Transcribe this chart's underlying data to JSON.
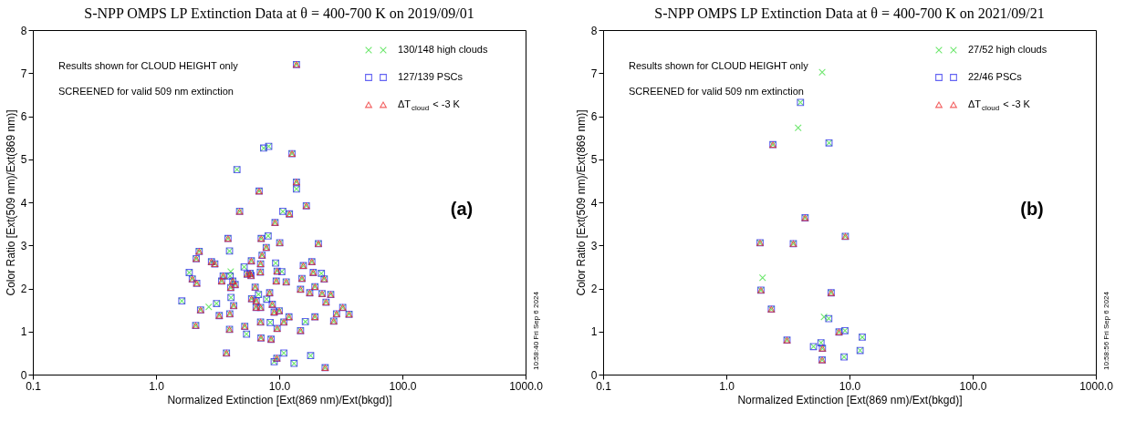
{
  "chart_data": [
    {
      "type": "scatter",
      "title": "S-NPP OMPS LP Extinction Data at θ = 400-700 K on 2019/09/01",
      "xlabel": "Normalized Extinction [Ext(869 nm)/Ext(bkgd)]",
      "ylabel": "Color Ratio [Ext(509 nm)/Ext(869 nm)]",
      "log": "x",
      "legend": "top right",
      "xlim": [
        0.1,
        1000
      ],
      "xticks": [
        {
          "value": 0.1,
          "label": "0.1"
        },
        {
          "value": 1,
          "label": "1.0"
        },
        {
          "value": 10,
          "label": "10.0"
        },
        {
          "value": 100,
          "label": "100.0"
        },
        {
          "value": 1000,
          "label": "1000.0"
        }
      ],
      "ylim": [
        0,
        8
      ],
      "yticks": [
        0,
        1,
        2,
        3,
        4,
        5,
        6,
        7,
        8
      ],
      "annotations": [
        "Results shown for CLOUD HEIGHT only",
        "SCREENED for valid 509 nm extinction",
        "(a)",
        "10:58:40 Fri Sep  6 2024"
      ],
      "series": [
        {
          "name": "130/148 high clouds",
          "color": "#33dd33",
          "marker": "cross",
          "x": [
            12.7,
            13.8,
            6.87,
            16.6,
            4.77,
            12.1,
            9.25,
            3.84,
            7.14,
            10.1,
            20.8,
            7.85,
            2.24,
            2.12,
            7.26,
            2.82,
            3.0,
            5.94,
            7.06,
            15.7,
            18.4,
            1.97,
            2.14,
            3.51,
            3.41,
            4.2,
            4.39,
            4.04,
            5.81,
            5.5,
            7.03,
            5.91,
            9.62,
            9.46,
            11.4,
            15.3,
            18.9,
            23.2,
            6.38,
            8.36,
            14.9,
            19.5,
            17.7,
            22.3,
            26.2,
            24.0,
            4.27,
            2.3,
            5.97,
            6.5,
            8.79,
            7.06,
            6.5,
            3.26,
            3.97,
            9.1,
            10.0,
            32.8,
            29.2,
            36.9,
            27.7,
            19.5,
            14.9,
            12.0,
            10.9,
            9.62,
            7.06,
            2.1,
            3.95,
            5.25,
            7.11,
            8.59,
            3.73,
            9.57,
            23.6,
            13.8,
            7.47,
            8.22,
            4.54,
            13.8,
            10.7,
            8.13,
            3.95,
            5.19,
            9.35,
            10.5,
            1.86,
            3.99,
            22.0,
            6.79,
            1.62,
            4.06,
            3.1,
            7.91,
            16.3,
            8.45,
            5.43,
            9.1,
            10.9,
            18.0,
            13.2,
            4.04,
            2.68
          ],
          "values": [
            5.13,
            4.47,
            4.26,
            3.92,
            3.79,
            3.73,
            3.53,
            3.16,
            3.16,
            3.06,
            3.04,
            2.95,
            2.86,
            2.69,
            2.77,
            2.62,
            2.57,
            2.64,
            2.57,
            2.53,
            2.62,
            2.22,
            2.12,
            2.29,
            2.17,
            2.17,
            2.09,
            2.02,
            2.35,
            2.33,
            2.38,
            2.3,
            2.4,
            2.17,
            2.15,
            2.23,
            2.37,
            2.22,
            2.03,
            1.9,
            1.98,
            2.04,
            1.9,
            1.88,
            1.86,
            1.68,
            1.6,
            1.5,
            1.76,
            1.71,
            1.63,
            1.56,
            1.56,
            1.37,
            1.41,
            1.45,
            1.48,
            1.56,
            1.41,
            1.4,
            1.24,
            1.34,
            1.02,
            1.34,
            1.22,
            1.07,
            1.22,
            1.14,
            1.05,
            1.12,
            0.85,
            0.82,
            0.5,
            0.38,
            0.16,
            7.2,
            5.26,
            5.3,
            4.76,
            4.31,
            3.79,
            3.22,
            2.87,
            2.5,
            2.59,
            2.39,
            2.37,
            2.29,
            2.35,
            1.86,
            1.71,
            1.79,
            1.65,
            1.75,
            1.23,
            1.21,
            0.94,
            0.3,
            0.5,
            0.44,
            0.26,
            2.39,
            1.57
          ]
        },
        {
          "name": "127/139 PSCs",
          "color": "#2222ee",
          "marker": "square",
          "x": [
            12.7,
            13.8,
            6.87,
            16.6,
            4.77,
            12.1,
            9.25,
            3.84,
            7.14,
            10.1,
            20.8,
            7.85,
            2.24,
            2.12,
            7.26,
            2.82,
            3.0,
            5.94,
            7.06,
            15.7,
            18.4,
            1.97,
            2.14,
            3.51,
            3.41,
            4.2,
            4.39,
            4.04,
            5.81,
            5.5,
            7.03,
            5.91,
            9.62,
            9.46,
            11.4,
            15.3,
            18.9,
            23.2,
            6.38,
            8.36,
            14.9,
            19.5,
            17.7,
            22.3,
            26.2,
            24.0,
            4.27,
            2.3,
            5.97,
            6.5,
            8.79,
            7.06,
            6.5,
            3.26,
            3.97,
            9.1,
            10.0,
            32.8,
            29.2,
            36.9,
            27.7,
            19.5,
            14.9,
            12.0,
            10.9,
            9.62,
            7.06,
            2.1,
            3.95,
            5.25,
            7.11,
            8.59,
            3.73,
            9.57,
            23.6,
            13.8,
            7.47,
            8.22,
            4.54,
            13.8,
            10.7,
            8.13,
            3.95,
            5.19,
            9.35,
            10.5,
            1.86,
            3.99,
            22.0,
            6.79,
            1.62,
            4.06,
            3.1,
            7.91,
            16.3,
            8.45,
            5.43,
            9.1,
            10.9,
            18.0,
            13.2
          ],
          "values": [
            5.13,
            4.47,
            4.26,
            3.92,
            3.79,
            3.73,
            3.53,
            3.16,
            3.16,
            3.06,
            3.04,
            2.95,
            2.86,
            2.69,
            2.77,
            2.62,
            2.57,
            2.64,
            2.57,
            2.53,
            2.62,
            2.22,
            2.12,
            2.29,
            2.17,
            2.17,
            2.09,
            2.02,
            2.35,
            2.33,
            2.38,
            2.3,
            2.4,
            2.17,
            2.15,
            2.23,
            2.37,
            2.22,
            2.03,
            1.9,
            1.98,
            2.04,
            1.9,
            1.88,
            1.86,
            1.68,
            1.6,
            1.5,
            1.76,
            1.71,
            1.63,
            1.56,
            1.56,
            1.37,
            1.41,
            1.45,
            1.48,
            1.56,
            1.41,
            1.4,
            1.24,
            1.34,
            1.02,
            1.34,
            1.22,
            1.07,
            1.22,
            1.14,
            1.05,
            1.12,
            0.85,
            0.82,
            0.5,
            0.38,
            0.16,
            7.2,
            5.26,
            5.3,
            4.76,
            4.31,
            3.79,
            3.22,
            2.87,
            2.5,
            2.59,
            2.39,
            2.37,
            2.29,
            2.35,
            1.86,
            1.71,
            1.79,
            1.65,
            1.75,
            1.23,
            1.21,
            0.94,
            0.3,
            0.5,
            0.44,
            0.26
          ]
        },
        {
          "name": "ΔT$_{cloud}$ < -3 K",
          "color": "#ee2020",
          "marker": "triangle",
          "x": [
            12.7,
            13.8,
            6.87,
            16.6,
            4.77,
            12.1,
            9.25,
            3.84,
            7.14,
            10.1,
            20.8,
            7.85,
            2.24,
            2.12,
            7.26,
            2.82,
            3.0,
            5.94,
            7.06,
            15.7,
            18.4,
            1.97,
            2.14,
            3.51,
            3.41,
            4.2,
            4.39,
            4.04,
            5.81,
            5.5,
            7.03,
            5.91,
            9.62,
            9.46,
            11.4,
            15.3,
            18.9,
            23.2,
            6.38,
            8.36,
            14.9,
            19.5,
            17.7,
            22.3,
            26.2,
            24.0,
            4.27,
            2.3,
            5.97,
            6.5,
            8.79,
            7.06,
            6.5,
            3.26,
            3.97,
            9.1,
            10.0,
            32.8,
            29.2,
            36.9,
            27.7,
            19.5,
            14.9,
            12.0,
            10.9,
            9.62,
            7.06,
            2.1,
            3.95,
            5.25,
            7.11,
            8.59,
            3.73,
            9.57,
            23.6,
            13.8
          ],
          "values": [
            5.13,
            4.47,
            4.26,
            3.92,
            3.79,
            3.73,
            3.53,
            3.16,
            3.16,
            3.06,
            3.04,
            2.95,
            2.86,
            2.69,
            2.77,
            2.62,
            2.57,
            2.64,
            2.57,
            2.53,
            2.62,
            2.22,
            2.12,
            2.29,
            2.17,
            2.17,
            2.09,
            2.02,
            2.35,
            2.33,
            2.38,
            2.3,
            2.4,
            2.17,
            2.15,
            2.23,
            2.37,
            2.22,
            2.03,
            1.9,
            1.98,
            2.04,
            1.9,
            1.88,
            1.86,
            1.68,
            1.6,
            1.5,
            1.76,
            1.71,
            1.63,
            1.56,
            1.56,
            1.37,
            1.41,
            1.45,
            1.48,
            1.56,
            1.41,
            1.4,
            1.24,
            1.34,
            1.02,
            1.34,
            1.22,
            1.07,
            1.22,
            1.14,
            1.05,
            1.12,
            0.85,
            0.82,
            0.5,
            0.38,
            0.16,
            7.2
          ]
        }
      ]
    },
    {
      "type": "scatter",
      "title": "S-NPP OMPS LP Extinction Data at θ = 400-700 K on 2021/09/21",
      "xlabel": "Normalized Extinction [Ext(869 nm)/Ext(bkgd)]",
      "ylabel": "Color Ratio [Ext(509 nm)/Ext(869 nm)]",
      "log": "x",
      "legend": "top right",
      "xlim": [
        0.1,
        1000
      ],
      "xticks": [
        {
          "value": 0.1,
          "label": "0.1"
        },
        {
          "value": 1,
          "label": "1.0"
        },
        {
          "value": 10,
          "label": "10.0"
        },
        {
          "value": 100,
          "label": "100.0"
        },
        {
          "value": 1000,
          "label": "1000.0"
        }
      ],
      "ylim": [
        0,
        8
      ],
      "yticks": [
        0,
        1,
        2,
        3,
        4,
        5,
        6,
        7,
        8
      ],
      "annotations": [
        "Results shown for CLOUD HEIGHT only",
        "SCREENED for valid 509 nm extinction",
        "(b)",
        "10:58:56 Fri Sep  6 2024"
      ],
      "series": [
        {
          "name": "27/52 high clouds",
          "color": "#33dd33",
          "marker": "cross",
          "x": [
            2.39,
            4.36,
            9.25,
            1.88,
            3.5,
            1.91,
            7.1,
            2.32,
            8.22,
            3.11,
            6.03,
            6.0,
            6.82,
            6.79,
            9.19,
            12.7,
            5.87,
            5.1,
            12.2,
            9.04,
            4.0,
            3.83,
            1.97,
            6.21,
            6.0
          ],
          "values": [
            5.34,
            3.64,
            3.21,
            3.06,
            3.04,
            1.96,
            1.9,
            1.52,
            0.99,
            0.8,
            0.61,
            0.34,
            5.38,
            1.3,
            1.02,
            0.87,
            0.74,
            0.65,
            0.56,
            0.41,
            6.32,
            5.73,
            2.25,
            1.34,
            7.02
          ]
        },
        {
          "name": "22/46 PSCs",
          "color": "#2222ee",
          "marker": "square",
          "x": [
            2.39,
            4.36,
            9.25,
            1.88,
            3.5,
            1.91,
            7.1,
            2.32,
            8.22,
            3.11,
            6.03,
            6.0,
            6.82,
            6.79,
            9.19,
            12.7,
            5.87,
            5.1,
            12.2,
            9.04,
            4.0
          ],
          "values": [
            5.34,
            3.64,
            3.21,
            3.06,
            3.04,
            1.96,
            1.9,
            1.52,
            0.99,
            0.8,
            0.61,
            0.34,
            5.38,
            1.3,
            1.02,
            0.87,
            0.74,
            0.65,
            0.56,
            0.41,
            6.32
          ]
        },
        {
          "name": "ΔT$_{cloud}$ < -3 K",
          "color": "#ee2020",
          "marker": "triangle",
          "x": [
            2.39,
            4.36,
            9.25,
            1.88,
            3.5,
            1.91,
            7.1,
            2.32,
            8.22,
            3.11,
            6.03,
            6.0
          ],
          "values": [
            5.34,
            3.64,
            3.21,
            3.06,
            3.04,
            1.96,
            1.9,
            1.52,
            0.99,
            0.8,
            0.61,
            0.34
          ]
        }
      ]
    }
  ]
}
